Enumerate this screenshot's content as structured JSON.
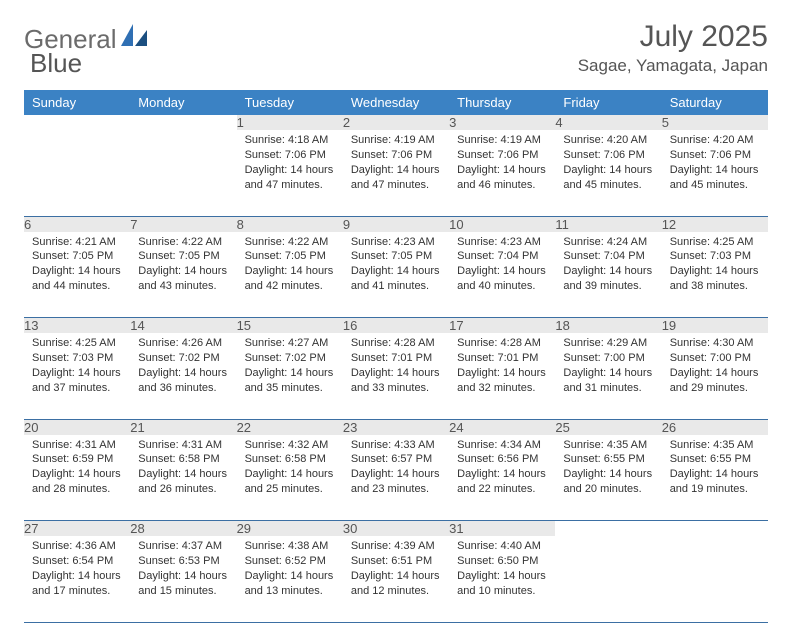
{
  "logo": {
    "word1": "General",
    "word2": "Blue"
  },
  "title": "July 2025",
  "location": "Sagae, Yamagata, Japan",
  "colors": {
    "header_bg": "#3b82c4",
    "header_fg": "#ffffff",
    "daynum_bg": "#e9e9e9",
    "rule": "#3b6fa3",
    "logo_blue": "#2f6fb3"
  },
  "weekday_labels": [
    "Sunday",
    "Monday",
    "Tuesday",
    "Wednesday",
    "Thursday",
    "Friday",
    "Saturday"
  ],
  "leading_blanks": 2,
  "days": [
    {
      "n": 1,
      "sunrise": "4:18 AM",
      "sunset": "7:06 PM",
      "daylight": "14 hours and 47 minutes."
    },
    {
      "n": 2,
      "sunrise": "4:19 AM",
      "sunset": "7:06 PM",
      "daylight": "14 hours and 47 minutes."
    },
    {
      "n": 3,
      "sunrise": "4:19 AM",
      "sunset": "7:06 PM",
      "daylight": "14 hours and 46 minutes."
    },
    {
      "n": 4,
      "sunrise": "4:20 AM",
      "sunset": "7:06 PM",
      "daylight": "14 hours and 45 minutes."
    },
    {
      "n": 5,
      "sunrise": "4:20 AM",
      "sunset": "7:06 PM",
      "daylight": "14 hours and 45 minutes."
    },
    {
      "n": 6,
      "sunrise": "4:21 AM",
      "sunset": "7:05 PM",
      "daylight": "14 hours and 44 minutes."
    },
    {
      "n": 7,
      "sunrise": "4:22 AM",
      "sunset": "7:05 PM",
      "daylight": "14 hours and 43 minutes."
    },
    {
      "n": 8,
      "sunrise": "4:22 AM",
      "sunset": "7:05 PM",
      "daylight": "14 hours and 42 minutes."
    },
    {
      "n": 9,
      "sunrise": "4:23 AM",
      "sunset": "7:05 PM",
      "daylight": "14 hours and 41 minutes."
    },
    {
      "n": 10,
      "sunrise": "4:23 AM",
      "sunset": "7:04 PM",
      "daylight": "14 hours and 40 minutes."
    },
    {
      "n": 11,
      "sunrise": "4:24 AM",
      "sunset": "7:04 PM",
      "daylight": "14 hours and 39 minutes."
    },
    {
      "n": 12,
      "sunrise": "4:25 AM",
      "sunset": "7:03 PM",
      "daylight": "14 hours and 38 minutes."
    },
    {
      "n": 13,
      "sunrise": "4:25 AM",
      "sunset": "7:03 PM",
      "daylight": "14 hours and 37 minutes."
    },
    {
      "n": 14,
      "sunrise": "4:26 AM",
      "sunset": "7:02 PM",
      "daylight": "14 hours and 36 minutes."
    },
    {
      "n": 15,
      "sunrise": "4:27 AM",
      "sunset": "7:02 PM",
      "daylight": "14 hours and 35 minutes."
    },
    {
      "n": 16,
      "sunrise": "4:28 AM",
      "sunset": "7:01 PM",
      "daylight": "14 hours and 33 minutes."
    },
    {
      "n": 17,
      "sunrise": "4:28 AM",
      "sunset": "7:01 PM",
      "daylight": "14 hours and 32 minutes."
    },
    {
      "n": 18,
      "sunrise": "4:29 AM",
      "sunset": "7:00 PM",
      "daylight": "14 hours and 31 minutes."
    },
    {
      "n": 19,
      "sunrise": "4:30 AM",
      "sunset": "7:00 PM",
      "daylight": "14 hours and 29 minutes."
    },
    {
      "n": 20,
      "sunrise": "4:31 AM",
      "sunset": "6:59 PM",
      "daylight": "14 hours and 28 minutes."
    },
    {
      "n": 21,
      "sunrise": "4:31 AM",
      "sunset": "6:58 PM",
      "daylight": "14 hours and 26 minutes."
    },
    {
      "n": 22,
      "sunrise": "4:32 AM",
      "sunset": "6:58 PM",
      "daylight": "14 hours and 25 minutes."
    },
    {
      "n": 23,
      "sunrise": "4:33 AM",
      "sunset": "6:57 PM",
      "daylight": "14 hours and 23 minutes."
    },
    {
      "n": 24,
      "sunrise": "4:34 AM",
      "sunset": "6:56 PM",
      "daylight": "14 hours and 22 minutes."
    },
    {
      "n": 25,
      "sunrise": "4:35 AM",
      "sunset": "6:55 PM",
      "daylight": "14 hours and 20 minutes."
    },
    {
      "n": 26,
      "sunrise": "4:35 AM",
      "sunset": "6:55 PM",
      "daylight": "14 hours and 19 minutes."
    },
    {
      "n": 27,
      "sunrise": "4:36 AM",
      "sunset": "6:54 PM",
      "daylight": "14 hours and 17 minutes."
    },
    {
      "n": 28,
      "sunrise": "4:37 AM",
      "sunset": "6:53 PM",
      "daylight": "14 hours and 15 minutes."
    },
    {
      "n": 29,
      "sunrise": "4:38 AM",
      "sunset": "6:52 PM",
      "daylight": "14 hours and 13 minutes."
    },
    {
      "n": 30,
      "sunrise": "4:39 AM",
      "sunset": "6:51 PM",
      "daylight": "14 hours and 12 minutes."
    },
    {
      "n": 31,
      "sunrise": "4:40 AM",
      "sunset": "6:50 PM",
      "daylight": "14 hours and 10 minutes."
    }
  ],
  "labels": {
    "sunrise": "Sunrise:",
    "sunset": "Sunset:",
    "daylight": "Daylight:"
  }
}
